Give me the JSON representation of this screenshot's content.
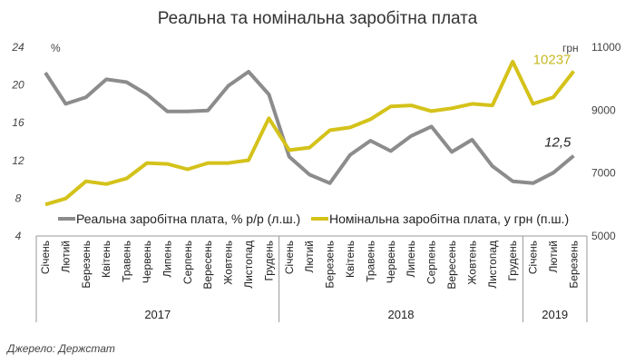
{
  "chart_data": {
    "type": "line",
    "title": "Реальна та номінальна заробітна плата",
    "source": "Джерело: Держстат",
    "categories": [
      "Січень",
      "Лютий",
      "Березень",
      "Квітень",
      "Травень",
      "Червень",
      "Липень",
      "Серпень",
      "Вересень",
      "Жовтень",
      "Листопад",
      "Грудень",
      "Січень",
      "Лютий",
      "Березень",
      "Квітень",
      "Травень",
      "Червень",
      "Липень",
      "Серпень",
      "Вересень",
      "Жовтень",
      "Листопад",
      "Грудень",
      "Січень",
      "Лютий",
      "Березень"
    ],
    "years": [
      {
        "label": "2017",
        "months": 12
      },
      {
        "label": "2018",
        "months": 12
      },
      {
        "label": "2019",
        "months": 3
      }
    ],
    "left_axis": {
      "unit": "%",
      "ylim": [
        4,
        24
      ],
      "ticks": [
        "4",
        "8",
        "12",
        "16",
        "20",
        "24"
      ]
    },
    "right_axis": {
      "unit": "грн",
      "ylim": [
        5000,
        11000
      ],
      "ticks": [
        "5000",
        "7000",
        "9000",
        "11000"
      ]
    },
    "grid": false,
    "legend_position": "bottom",
    "series": [
      {
        "name": "Реальна заробітна плата, % р/р (л.ш.)",
        "axis": "left",
        "color": "#8c8c8c",
        "values": [
          21.3,
          18.0,
          18.7,
          20.6,
          20.3,
          19.0,
          17.2,
          17.2,
          17.3,
          19.9,
          21.4,
          19.0,
          12.4,
          10.5,
          9.6,
          12.6,
          14.1,
          13.0,
          14.6,
          15.6,
          12.9,
          14.2,
          11.4,
          9.8,
          9.6,
          10.7,
          12.5
        ],
        "end_label": "12,5"
      },
      {
        "name": "Номінальна заробітна плата, у грн (п.ш.)",
        "axis": "right",
        "color": "#d4c21a",
        "values": [
          6000,
          6190,
          6740,
          6650,
          6830,
          7320,
          7290,
          7120,
          7320,
          7320,
          7410,
          8740,
          7730,
          7810,
          8360,
          8450,
          8710,
          9120,
          9150,
          8970,
          9060,
          9200,
          9150,
          10540,
          9200,
          9410,
          10237
        ],
        "end_label": "10237"
      }
    ]
  }
}
